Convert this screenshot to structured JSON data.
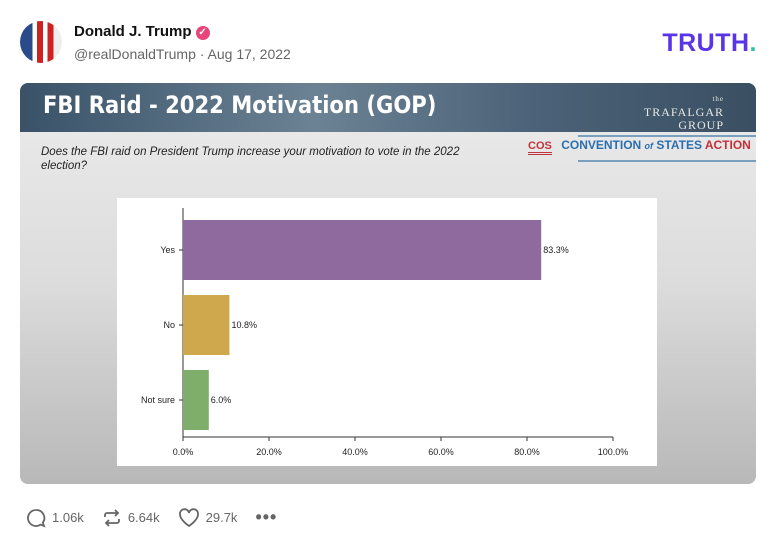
{
  "post": {
    "author_name": "Donald J. Trump",
    "verified_icon": "verified-badge-icon",
    "handle_date": "@realDonaldTrump · Aug 17, 2022",
    "brand_logo": "TRUTH",
    "brand_dot": "."
  },
  "image": {
    "title": "FBI Raid - 2022 Motivation (GOP)",
    "trafalgar_logo": [
      "the",
      "TRAFALGAR",
      "GROUP"
    ],
    "question": "Does the FBI raid on President Trump increase your motivation to vote in the 2022 election?",
    "cos_logo": {
      "abbr": "COS",
      "text1": "CONVENTION",
      "of": "of",
      "text2": "STATES",
      "text3": "ACTION"
    }
  },
  "chart_data": {
    "type": "bar",
    "orientation": "horizontal",
    "categories": [
      "Yes",
      "No",
      "Not sure"
    ],
    "values": [
      83.3,
      10.8,
      6.0
    ],
    "data_labels": [
      "83.3%",
      "10.8%",
      "6.0%"
    ],
    "colors": [
      "#8e6a9e",
      "#cfa84e",
      "#7fae6a"
    ],
    "xlim": [
      0,
      100
    ],
    "x_ticks": [
      "0.0%",
      "20.0%",
      "40.0%",
      "60.0%",
      "80.0%",
      "100.0%"
    ],
    "grid": false
  },
  "actions": {
    "replies": "1.06k",
    "retruths": "6.64k",
    "likes": "29.7k",
    "more_icon": "more-icon"
  }
}
